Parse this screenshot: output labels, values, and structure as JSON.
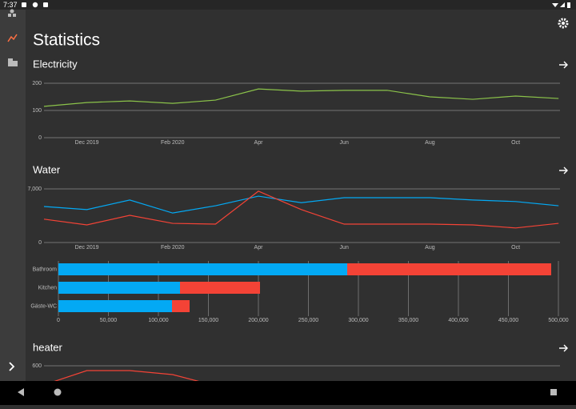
{
  "status_bar": {
    "time": "7:37"
  },
  "header": {
    "title": "Statistics"
  },
  "sections": [
    {
      "title": "Electricity",
      "chart_data": {
        "type": "line",
        "categories": [
          null,
          "Dec 2019",
          null,
          "Feb 2020",
          null,
          "Apr",
          null,
          "Jun",
          null,
          "Aug",
          null,
          "Oct",
          null
        ],
        "series": [
          {
            "color": "#8bc34a",
            "values": [
              115,
              129,
              135,
              126,
              138,
              179,
              171,
              174,
              174,
              150,
              141,
              153,
              144
            ]
          }
        ],
        "ylim": [
          0,
          200
        ],
        "yticks": [
          0,
          100,
          200
        ],
        "grid": true
      }
    },
    {
      "title": "Water",
      "chart_data": [
        {
          "type": "line",
          "categories": [
            null,
            "Dec 2019",
            null,
            "Feb 2020",
            null,
            "Apr",
            null,
            "Jun",
            null,
            "Aug",
            null,
            "Oct",
            null
          ],
          "series": [
            {
              "color": "#03a9f4",
              "values": [
                4700,
                4300,
                5550,
                3850,
                4800,
                6050,
                5200,
                5850,
                5850,
                5850,
                5550,
                5350,
                4800
              ]
            },
            {
              "color": "#f44336",
              "values": [
                3050,
                2300,
                3550,
                2500,
                2400,
                6700,
                4300,
                2400,
                2400,
                2400,
                2300,
                1900,
                2500
              ]
            }
          ],
          "ylim": [
            0,
            7000
          ],
          "yticks": [
            0,
            {
              "value": 7000,
              "label": "7,000"
            }
          ],
          "grid": true
        },
        {
          "type": "bar",
          "orientation": "horizontal",
          "stacked": true,
          "categories": [
            "Bathroom",
            "Kitchen",
            "Gäste-WC"
          ],
          "series": [
            {
              "color": "#03a9f4",
              "values": [
                288800,
                121600,
                113600
              ]
            },
            {
              "color": "#f44336",
              "values": [
                204000,
                80000,
                17600
              ]
            }
          ],
          "xlim": [
            0,
            500000
          ],
          "xticks": [
            0,
            {
              "value": 50000,
              "label": "50,000"
            },
            {
              "value": 100000,
              "label": "100,000"
            },
            {
              "value": 150000,
              "label": "150,000"
            },
            {
              "value": 200000,
              "label": "200,000"
            },
            {
              "value": 250000,
              "label": "250,000"
            },
            {
              "value": 300000,
              "label": "300,000"
            },
            {
              "value": 350000,
              "label": "350,000"
            },
            {
              "value": 400000,
              "label": "400,000"
            },
            {
              "value": 450000,
              "label": "450,000"
            },
            {
              "value": 500000,
              "label": "500,000"
            }
          ],
          "grid": true
        }
      ]
    },
    {
      "title": "heater",
      "chart_data": {
        "type": "line",
        "categories": [
          null,
          null,
          null,
          null,
          null
        ],
        "series": [
          {
            "color": "#f44336",
            "values": [
              390,
              547,
              547,
              503,
              380
            ]
          }
        ],
        "ylim": [
          0,
          600
        ],
        "yticks": [
          600
        ],
        "grid": true
      }
    }
  ]
}
